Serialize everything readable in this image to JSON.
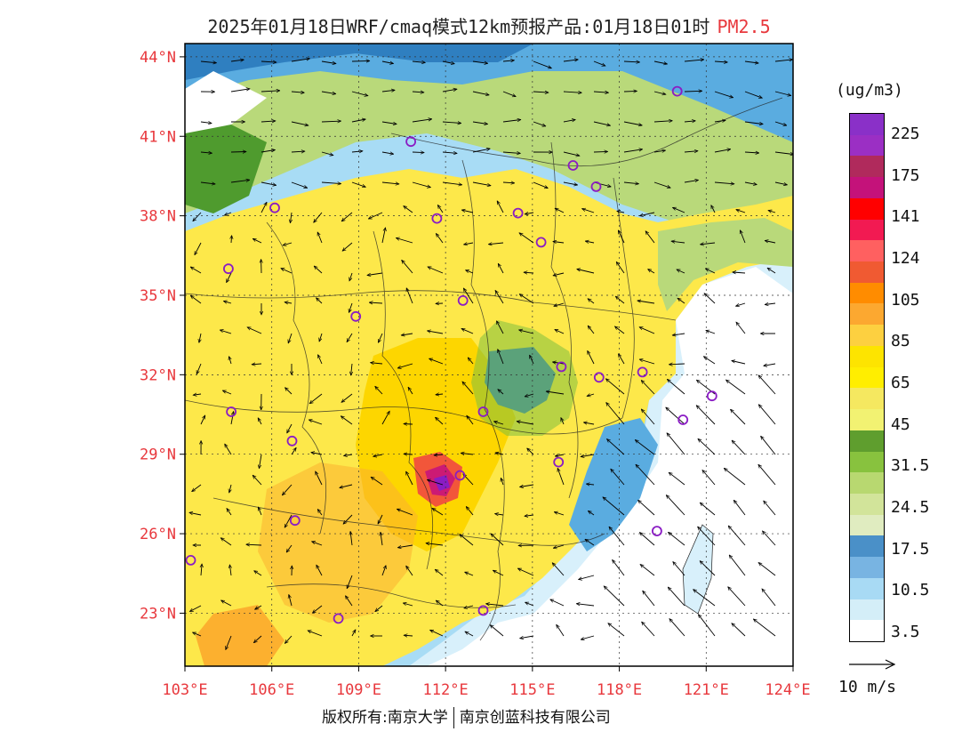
{
  "title": {
    "main": "2025年01月18日WRF/cmaq模式12km预报产品:01月18日01时",
    "pollutant": "PM2.5"
  },
  "map": {
    "lon_range": [
      103,
      124
    ],
    "lat_range": [
      21,
      44.5
    ],
    "lat_labels": [
      "44°N",
      "41°N",
      "38°N",
      "35°N",
      "32°N",
      "29°N",
      "26°N",
      "23°N"
    ],
    "lat_values": [
      44,
      41,
      38,
      35,
      32,
      29,
      26,
      23
    ],
    "lon_labels": [
      "103°E",
      "106°E",
      "109°E",
      "112°E",
      "115°E",
      "118°E",
      "121°E",
      "124°E"
    ],
    "lon_values": [
      103,
      106,
      109,
      112,
      115,
      118,
      121,
      124
    ],
    "cities": [
      {
        "lon": 103.2,
        "lat": 25.0
      },
      {
        "lon": 104.6,
        "lat": 30.6
      },
      {
        "lon": 104.5,
        "lat": 36.0
      },
      {
        "lon": 106.1,
        "lat": 38.3
      },
      {
        "lon": 106.7,
        "lat": 29.5
      },
      {
        "lon": 106.8,
        "lat": 26.5
      },
      {
        "lon": 108.3,
        "lat": 22.8
      },
      {
        "lon": 108.9,
        "lat": 34.2
      },
      {
        "lon": 110.8,
        "lat": 40.8
      },
      {
        "lon": 111.7,
        "lat": 37.9
      },
      {
        "lon": 112.5,
        "lat": 28.2
      },
      {
        "lon": 113.3,
        "lat": 23.1
      },
      {
        "lon": 112.6,
        "lat": 34.8
      },
      {
        "lon": 113.3,
        "lat": 30.6
      },
      {
        "lon": 114.5,
        "lat": 38.1
      },
      {
        "lon": 115.3,
        "lat": 37.0
      },
      {
        "lon": 115.9,
        "lat": 28.7
      },
      {
        "lon": 116.4,
        "lat": 39.9
      },
      {
        "lon": 117.2,
        "lat": 39.1
      },
      {
        "lon": 117.3,
        "lat": 31.9
      },
      {
        "lon": 118.8,
        "lat": 32.1
      },
      {
        "lon": 119.3,
        "lat": 26.1
      },
      {
        "lon": 120.2,
        "lat": 30.3
      },
      {
        "lon": 121.2,
        "lat": 31.2
      },
      {
        "lon": 120.0,
        "lat": 42.7
      },
      {
        "lon": 116.0,
        "lat": 32.3
      }
    ],
    "colors": {
      "ocean": "#ffffff",
      "very_clean": "#d8f0fb",
      "clean": "#a8dcf5",
      "light_blue": "#5aace0",
      "blue": "#2f7fc0",
      "pale_green": "#dde9b8",
      "light_green": "#b9d97a",
      "green": "#7fbf3f",
      "dark_green": "#4f9b2e",
      "yellow": "#f5f26a",
      "yellow2": "#fde84a",
      "gold": "#fdd600",
      "orange_light": "#fcb02f",
      "orange": "#f47a20",
      "red_orange": "#f2563a",
      "red": "#f03a4a",
      "magenta": "#cc1a74",
      "purple": "#8a1cc4"
    }
  },
  "legend": {
    "unit": "(ug/m3)",
    "labels": [
      "225",
      "175",
      "141",
      "124",
      "105",
      "85",
      "65",
      "45",
      "31.5",
      "24.5",
      "17.5",
      "10.5",
      "3.5"
    ],
    "colors": [
      "#8a30c8",
      "#9b2fc4",
      "#b02a5c",
      "#c4127a",
      "#ff0000",
      "#f21a52",
      "#ff6060",
      "#f05a32",
      "#ff8c00",
      "#fca830",
      "#fdd040",
      "#fde400",
      "#ffee00",
      "#f5e860",
      "#f2f272",
      "#5f9e2e",
      "#88c23e",
      "#b8d870",
      "#d2e49a",
      "#e0ecc0",
      "#4a90c8",
      "#78b4e2",
      "#a8daf4",
      "#d4eef8",
      "#ffffff"
    ]
  },
  "wind": {
    "reference_label": "10 m/s"
  },
  "footer": {
    "copyright": "版权所有:南京大学",
    "company": "南京创蓝科技有限公司"
  }
}
